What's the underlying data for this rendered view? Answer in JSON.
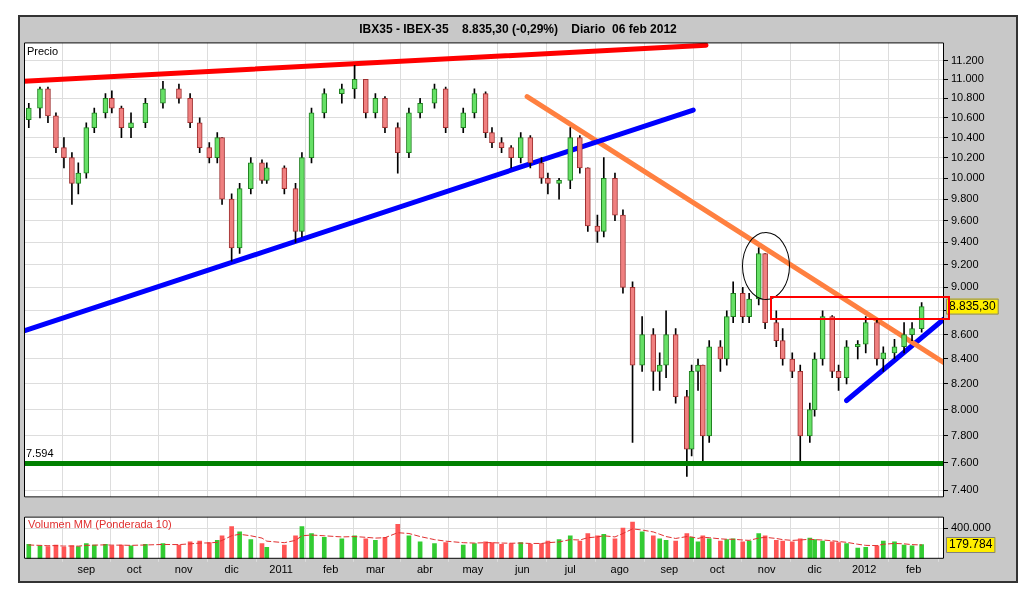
{
  "chart_data": [
    {
      "type": "candlestick",
      "title": "IBX35 - IBEX-35    8.835,30 (-0,29%)    Diario  06 feb 2012",
      "ylabel": "Precio",
      "x": [
        "2010-07-27",
        "2010-08-03",
        "2010-08-08",
        "2010-08-13",
        "2010-08-18",
        "2010-08-23",
        "2010-08-27",
        "2010-09-01",
        "2010-09-06",
        "2010-09-13",
        "2010-09-17",
        "2010-09-23",
        "2010-09-29",
        "2010-10-08",
        "2010-10-19",
        "2010-10-29",
        "2010-11-05",
        "2010-11-11",
        "2010-11-17",
        "2010-11-22",
        "2010-11-25",
        "2010-12-01",
        "2010-12-06",
        "2010-12-13",
        "2010-12-20",
        "2010-12-23",
        "2011-01-03",
        "2011-01-10",
        "2011-01-14",
        "2011-01-20",
        "2011-01-28",
        "2011-02-08",
        "2011-02-16",
        "2011-02-23",
        "2011-03-01",
        "2011-03-07",
        "2011-03-15",
        "2011-03-22",
        "2011-03-29",
        "2011-04-07",
        "2011-04-14",
        "2011-04-25",
        "2011-05-02",
        "2011-05-09",
        "2011-05-13",
        "2011-05-19",
        "2011-05-25",
        "2011-05-31",
        "2011-06-06",
        "2011-06-13",
        "2011-06-17",
        "2011-06-24",
        "2011-07-01",
        "2011-07-07",
        "2011-07-12",
        "2011-07-18",
        "2011-07-22",
        "2011-07-29",
        "2011-08-03",
        "2011-08-09",
        "2011-08-15",
        "2011-08-22",
        "2011-08-26",
        "2011-08-30",
        "2011-09-05",
        "2011-09-12",
        "2011-09-15",
        "2011-09-19",
        "2011-09-22",
        "2011-09-26",
        "2011-10-03",
        "2011-10-07",
        "2011-10-11",
        "2011-10-17",
        "2011-10-21",
        "2011-10-27",
        "2011-10-31",
        "2011-11-07",
        "2011-11-11",
        "2011-11-17",
        "2011-11-22",
        "2011-11-28",
        "2011-12-01",
        "2011-12-06",
        "2011-12-12",
        "2011-12-16",
        "2011-12-21",
        "2011-12-28",
        "2012-01-02",
        "2012-01-09",
        "2012-01-13",
        "2012-01-20",
        "2012-01-26",
        "2012-01-31",
        "2012-02-06"
      ],
      "ohlc": [
        [
          10580,
          10750,
          10500,
          10700
        ],
        [
          10700,
          10920,
          10600,
          10900
        ],
        [
          10900,
          10920,
          10550,
          10620
        ],
        [
          10620,
          10650,
          10250,
          10300
        ],
        [
          10300,
          10400,
          10100,
          10200
        ],
        [
          10200,
          10250,
          9750,
          9950
        ],
        [
          9950,
          10150,
          9850,
          10050
        ],
        [
          10050,
          10550,
          10000,
          10500
        ],
        [
          10500,
          10700,
          10450,
          10650
        ],
        [
          10650,
          10850,
          10600,
          10800
        ],
        [
          10800,
          10880,
          10650,
          10700
        ],
        [
          10700,
          10720,
          10400,
          10500
        ],
        [
          10500,
          10650,
          10400,
          10550
        ],
        [
          10550,
          10800,
          10500,
          10750
        ],
        [
          10750,
          10980,
          10700,
          10900
        ],
        [
          10900,
          10950,
          10750,
          10800
        ],
        [
          10800,
          10850,
          10500,
          10550
        ],
        [
          10550,
          10600,
          10250,
          10300
        ],
        [
          10300,
          10350,
          10150,
          10200
        ],
        [
          10200,
          10450,
          10150,
          10400
        ],
        [
          10400,
          10400,
          9750,
          9800
        ],
        [
          9800,
          9850,
          9230,
          9350
        ],
        [
          9350,
          9950,
          9300,
          9900
        ],
        [
          9900,
          10200,
          9850,
          10150
        ],
        [
          10150,
          10180,
          9950,
          9980
        ],
        [
          9980,
          10150,
          9950,
          10100
        ],
        [
          10100,
          10120,
          9850,
          9900
        ],
        [
          9900,
          9950,
          9400,
          9500
        ],
        [
          9500,
          10250,
          9450,
          10200
        ],
        [
          10200,
          10700,
          10150,
          10650
        ],
        [
          10650,
          10900,
          10600,
          10850
        ],
        [
          10850,
          10950,
          10750,
          10900
        ],
        [
          10900,
          11150,
          10800,
          11000
        ],
        [
          11000,
          11000,
          10600,
          10650
        ],
        [
          10650,
          10850,
          10600,
          10800
        ],
        [
          10800,
          10820,
          10450,
          10500
        ],
        [
          10500,
          10550,
          10050,
          10250
        ],
        [
          10250,
          10700,
          10200,
          10650
        ],
        [
          10650,
          10800,
          10600,
          10750
        ],
        [
          10750,
          10950,
          10700,
          10900
        ],
        [
          10900,
          10920,
          10450,
          10500
        ],
        [
          10500,
          10700,
          10450,
          10650
        ],
        [
          10650,
          10900,
          10600,
          10850
        ],
        [
          10850,
          10870,
          10400,
          10450
        ],
        [
          10450,
          10500,
          10300,
          10350
        ],
        [
          10350,
          10400,
          10250,
          10300
        ],
        [
          10300,
          10320,
          10100,
          10200
        ],
        [
          10200,
          10450,
          10150,
          10400
        ],
        [
          10400,
          10420,
          10100,
          10150
        ],
        [
          10150,
          10200,
          9950,
          10000
        ],
        [
          10000,
          10050,
          9850,
          9950
        ],
        [
          9950,
          10000,
          9800,
          9980
        ],
        [
          9980,
          10500,
          9900,
          10400
        ],
        [
          10400,
          10420,
          10050,
          10100
        ],
        [
          10100,
          10100,
          9500,
          9550
        ],
        [
          9550,
          9650,
          9400,
          9500
        ],
        [
          9500,
          10200,
          9450,
          10000
        ],
        [
          10000,
          10050,
          9600,
          9650
        ],
        [
          9650,
          9700,
          8950,
          9000
        ],
        [
          9000,
          9050,
          7750,
          8350
        ],
        [
          8350,
          8750,
          8300,
          8600
        ],
        [
          8600,
          8650,
          8150,
          8300
        ],
        [
          8300,
          8450,
          8150,
          8350
        ],
        [
          8350,
          8800,
          8250,
          8600
        ],
        [
          8600,
          8650,
          8050,
          8100
        ],
        [
          8100,
          8150,
          7500,
          7700
        ],
        [
          7700,
          8350,
          7650,
          8300
        ],
        [
          8300,
          8400,
          8150,
          8350
        ],
        [
          8350,
          8350,
          7600,
          7800
        ],
        [
          7800,
          8550,
          7750,
          8500
        ],
        [
          8500,
          8550,
          8300,
          8400
        ],
        [
          8400,
          8800,
          8350,
          8750
        ],
        [
          8750,
          9050,
          8700,
          8950
        ],
        [
          8950,
          9000,
          8700,
          8750
        ],
        [
          8750,
          8950,
          8700,
          8900
        ],
        [
          8900,
          9350,
          8850,
          9300
        ],
        [
          9300,
          9300,
          8650,
          8700
        ],
        [
          8700,
          8800,
          8500,
          8550
        ],
        [
          8550,
          8650,
          8350,
          8400
        ],
        [
          8400,
          8450,
          8250,
          8300
        ],
        [
          8300,
          8350,
          7600,
          7800
        ],
        [
          7800,
          8050,
          7750,
          8000
        ],
        [
          8000,
          8450,
          7950,
          8400
        ],
        [
          8400,
          8800,
          8350,
          8750
        ],
        [
          8750,
          8760,
          8250,
          8300
        ],
        [
          8300,
          8350,
          8150,
          8250
        ],
        [
          8250,
          8550,
          8200,
          8500
        ],
        [
          8500,
          8550,
          8400,
          8520
        ],
        [
          8520,
          8750,
          8450,
          8700
        ],
        [
          8700,
          8720,
          8350,
          8400
        ],
        [
          8400,
          8500,
          8300,
          8450
        ],
        [
          8450,
          8560,
          8400,
          8500
        ],
        [
          8500,
          8700,
          8450,
          8600
        ],
        [
          8600,
          8700,
          8550,
          8650
        ],
        [
          8650,
          8870,
          8620,
          8835.3
        ]
      ],
      "series": [
        {
          "type": "line",
          "color": "#ff0000",
          "x": [
            "2010-07-24",
            "2011-09-24"
          ],
          "values": [
            10980,
            11370
          ]
        },
        {
          "type": "line",
          "color": "#0000ff",
          "x": [
            "2010-07-24",
            "2011-09-16"
          ],
          "values": [
            8630,
            10680
          ]
        },
        {
          "type": "line",
          "color": "#ff8040",
          "x": [
            "2011-06-04",
            "2012-02-20"
          ],
          "values": [
            10820,
            8370
          ]
        },
        {
          "type": "line",
          "color": "#0000ff",
          "x": [
            "2011-12-21",
            "2012-02-20"
          ],
          "values": [
            8070,
            8730
          ]
        }
      ],
      "ref_lines": [
        {
          "axis": "y",
          "value": 7594,
          "label": "7.594",
          "color": "#008000"
        }
      ],
      "annotations": [
        "8.835,30"
      ],
      "xlim": [
        "2010-07-24",
        "2012-02-20"
      ],
      "xticks": [
        {
          "value": "2010-09-01",
          "label": null
        },
        {
          "value": "2010-10-01",
          "label": null
        },
        {
          "value": "2010-11-01",
          "label": null
        },
        {
          "value": "2010-12-01",
          "label": null
        },
        {
          "value": "2011-01-01",
          "label": null
        },
        {
          "value": "2011-02-01",
          "label": null
        },
        {
          "value": "2011-03-01",
          "label": null
        },
        {
          "value": "2011-04-01",
          "label": null
        },
        {
          "value": "2011-05-01",
          "label": null
        },
        {
          "value": "2011-06-01",
          "label": null
        },
        {
          "value": "2011-07-01",
          "label": null
        },
        {
          "value": "2011-08-01",
          "label": null
        },
        {
          "value": "2011-09-01",
          "label": null
        },
        {
          "value": "2011-10-01",
          "label": null
        },
        {
          "value": "2011-11-01",
          "label": null
        },
        {
          "value": "2011-12-01",
          "label": null
        },
        {
          "value": "2012-01-01",
          "label": null
        },
        {
          "value": "2012-02-01",
          "label": null
        }
      ],
      "ylim": [
        7350,
        11400
      ],
      "yticks": [
        {
          "value": 7400,
          "label": "7.400"
        },
        {
          "value": 7600,
          "label": "7.600"
        },
        {
          "value": 7800,
          "label": "7.800"
        },
        {
          "value": 8000,
          "label": "8.000"
        },
        {
          "value": 8200,
          "label": "8.200"
        },
        {
          "value": 8400,
          "label": "8.400"
        },
        {
          "value": 8600,
          "label": "8.600"
        },
        {
          "value": 8800,
          "label": null
        },
        {
          "value": 9000,
          "label": "9.000"
        },
        {
          "value": 9200,
          "label": "9.200"
        },
        {
          "value": 9400,
          "label": "9.400"
        },
        {
          "value": 9600,
          "label": "9.600"
        },
        {
          "value": 9800,
          "label": "9.800"
        },
        {
          "value": 10000,
          "label": "10.000"
        },
        {
          "value": 10200,
          "label": "10.200"
        },
        {
          "value": 10400,
          "label": "10.400"
        },
        {
          "value": 10600,
          "label": "10.600"
        },
        {
          "value": 10800,
          "label": "10.800"
        },
        {
          "value": 11000,
          "label": "11.000"
        },
        {
          "value": 11200,
          "label": "11.200"
        }
      ],
      "log": true,
      "grid": true,
      "legend": false,
      "marker": "none",
      "tick_labels": "y"
    },
    {
      "type": "bar",
      "x": [
        "2010-07-27",
        "2010-08-03",
        "2010-08-08",
        "2010-08-13",
        "2010-08-18",
        "2010-08-23",
        "2010-08-27",
        "2010-09-01",
        "2010-09-06",
        "2010-09-13",
        "2010-09-17",
        "2010-09-23",
        "2010-09-29",
        "2010-10-08",
        "2010-10-19",
        "2010-10-29",
        "2010-11-05",
        "2010-11-11",
        "2010-11-17",
        "2010-11-22",
        "2010-11-25",
        "2010-12-01",
        "2010-12-06",
        "2010-12-13",
        "2010-12-20",
        "2010-12-23",
        "2011-01-03",
        "2011-01-10",
        "2011-01-14",
        "2011-01-20",
        "2011-01-28",
        "2011-02-08",
        "2011-02-16",
        "2011-02-23",
        "2011-03-01",
        "2011-03-07",
        "2011-03-15",
        "2011-03-22",
        "2011-03-29",
        "2011-04-07",
        "2011-04-14",
        "2011-04-25",
        "2011-05-02",
        "2011-05-09",
        "2011-05-13",
        "2011-05-19",
        "2011-05-25",
        "2011-05-31",
        "2011-06-06",
        "2011-06-13",
        "2011-06-17",
        "2011-06-24",
        "2011-07-01",
        "2011-07-07",
        "2011-07-12",
        "2011-07-18",
        "2011-07-22",
        "2011-07-29",
        "2011-08-03",
        "2011-08-09",
        "2011-08-15",
        "2011-08-22",
        "2011-08-26",
        "2011-08-30",
        "2011-09-05",
        "2011-09-12",
        "2011-09-15",
        "2011-09-19",
        "2011-09-22",
        "2011-09-26",
        "2011-10-03",
        "2011-10-07",
        "2011-10-11",
        "2011-10-17",
        "2011-10-21",
        "2011-10-27",
        "2011-10-31",
        "2011-11-07",
        "2011-11-11",
        "2011-11-17",
        "2011-11-22",
        "2011-11-28",
        "2011-12-01",
        "2011-12-06",
        "2011-12-12",
        "2011-12-16",
        "2011-12-21",
        "2011-12-28",
        "2012-01-02",
        "2012-01-09",
        "2012-01-13",
        "2012-01-20",
        "2012-01-26",
        "2012-01-31",
        "2012-02-06"
      ],
      "series": [
        {
          "type": "bar",
          "values": [
            190000,
            170000,
            160000,
            180000,
            150000,
            170000,
            160000,
            200000,
            180000,
            190000,
            170000,
            180000,
            170000,
            190000,
            200000,
            180000,
            220000,
            230000,
            210000,
            240000,
            300000,
            420000,
            350000,
            250000,
            200000,
            150000,
            180000,
            300000,
            420000,
            330000,
            280000,
            260000,
            300000,
            260000,
            240000,
            280000,
            450000,
            300000,
            220000,
            200000,
            210000,
            180000,
            200000,
            220000,
            210000,
            190000,
            200000,
            210000,
            190000,
            200000,
            230000,
            250000,
            300000,
            230000,
            330000,
            300000,
            320000,
            260000,
            400000,
            480000,
            350000,
            300000,
            260000,
            240000,
            230000,
            330000,
            280000,
            220000,
            300000,
            260000,
            230000,
            250000,
            260000,
            220000,
            230000,
            330000,
            300000,
            240000,
            230000,
            220000,
            260000,
            270000,
            250000,
            230000,
            220000,
            210000,
            200000,
            140000,
            150000,
            170000,
            230000,
            220000,
            180000,
            170000,
            185000
          ],
          "colors": [
            "#33cc33",
            "#33cc33",
            "#ff5555",
            "#ff5555",
            "#ff5555",
            "#ff5555",
            "#33cc33",
            "#33cc33",
            "#33cc33",
            "#33cc33",
            "#ff5555",
            "#ff5555",
            "#33cc33",
            "#33cc33",
            "#33cc33",
            "#ff5555",
            "#ff5555",
            "#ff5555",
            "#ff5555",
            "#33cc33",
            "#ff5555",
            "#ff5555",
            "#33cc33",
            "#33cc33",
            "#ff5555",
            "#33cc33",
            "#ff5555",
            "#ff5555",
            "#33cc33",
            "#33cc33",
            "#33cc33",
            "#33cc33",
            "#33cc33",
            "#ff5555",
            "#33cc33",
            "#ff5555",
            "#ff5555",
            "#33cc33",
            "#33cc33",
            "#33cc33",
            "#ff5555",
            "#33cc33",
            "#33cc33",
            "#ff5555",
            "#ff5555",
            "#ff5555",
            "#ff5555",
            "#33cc33",
            "#ff5555",
            "#ff5555",
            "#ff5555",
            "#33cc33",
            "#33cc33",
            "#ff5555",
            "#ff5555",
            "#ff5555",
            "#33cc33",
            "#ff5555",
            "#ff5555",
            "#ff5555",
            "#33cc33",
            "#ff5555",
            "#33cc33",
            "#33cc33",
            "#ff5555",
            "#ff5555",
            "#33cc33",
            "#33cc33",
            "#ff5555",
            "#33cc33",
            "#ff5555",
            "#33cc33",
            "#33cc33",
            "#ff5555",
            "#33cc33",
            "#33cc33",
            "#ff5555",
            "#ff5555",
            "#ff5555",
            "#ff5555",
            "#ff5555",
            "#33cc33",
            "#33cc33",
            "#33cc33",
            "#ff5555",
            "#ff5555",
            "#33cc33",
            "#33cc33",
            "#33cc33",
            "#ff5555",
            "#33cc33",
            "#33cc33",
            "#33cc33",
            "#33cc33",
            "#33cc33"
          ]
        },
        {
          "type": "line",
          "name": "Volumen MM (Ponderada 10)",
          "color": "#e03030",
          "line_style": "dashed",
          "values": [
            180000,
            175000,
            170000,
            172000,
            165000,
            168000,
            165000,
            175000,
            178000,
            182000,
            178000,
            178000,
            175000,
            180000,
            187000,
            185000,
            195000,
            205000,
            207000,
            215000,
            240000,
            300000,
            320000,
            300000,
            270000,
            230000,
            210000,
            240000,
            300000,
            310000,
            300000,
            285000,
            290000,
            280000,
            270000,
            275000,
            340000,
            330000,
            290000,
            250000,
            230000,
            210000,
            205000,
            210000,
            210000,
            205000,
            203000,
            205000,
            200000,
            200000,
            210000,
            220000,
            250000,
            245000,
            275000,
            285000,
            300000,
            285000,
            330000,
            390000,
            375000,
            350000,
            320000,
            290000,
            265000,
            290000,
            285000,
            265000,
            280000,
            275000,
            260000,
            255000,
            255000,
            245000,
            240000,
            270000,
            280000,
            265000,
            250000,
            240000,
            245000,
            255000,
            250000,
            245000,
            235000,
            225000,
            215000,
            190000,
            175000,
            172000,
            190000,
            200000,
            195000,
            185000,
            179784
          ]
        }
      ],
      "annotations": [
        "179.784"
      ],
      "xlim": [
        "2010-07-24",
        "2012-02-20"
      ],
      "xticks": [
        {
          "value": "2010-09-01",
          "label": "sep"
        },
        {
          "value": "2010-10-01",
          "label": "oct"
        },
        {
          "value": "2010-11-01",
          "label": "nov"
        },
        {
          "value": "2010-12-01",
          "label": "dic"
        },
        {
          "value": "2011-01-01",
          "label": "2011"
        },
        {
          "value": "2011-02-01",
          "label": "feb"
        },
        {
          "value": "2011-03-01",
          "label": "mar"
        },
        {
          "value": "2011-04-01",
          "label": "abr"
        },
        {
          "value": "2011-05-01",
          "label": "may"
        },
        {
          "value": "2011-06-01",
          "label": "jun"
        },
        {
          "value": "2011-07-01",
          "label": "jul"
        },
        {
          "value": "2011-08-01",
          "label": "ago"
        },
        {
          "value": "2011-09-01",
          "label": "sep"
        },
        {
          "value": "2011-10-01",
          "label": "oct"
        },
        {
          "value": "2011-11-01",
          "label": "nov"
        },
        {
          "value": "2011-12-01",
          "label": "dic"
        },
        {
          "value": "2012-01-01",
          "label": "2012"
        },
        {
          "value": "2012-02-01",
          "label": "feb"
        }
      ],
      "ylim": [
        0,
        550000
      ],
      "yticks": [
        {
          "value": 400000,
          "label": "400.000"
        }
      ],
      "grid": true,
      "legend": "top left",
      "marker": "none"
    }
  ]
}
